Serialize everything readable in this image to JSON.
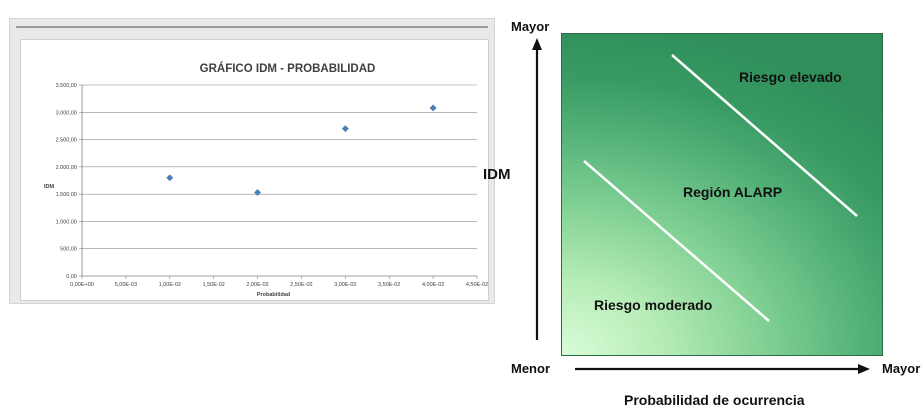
{
  "chart_data": {
    "type": "scatter",
    "title": "GRÁFICO IDM - PROBABILIDAD",
    "xlabel": "Probabilidad",
    "ylabel": "IDM",
    "xlim": [
      0,
      0.045
    ],
    "ylim": [
      0,
      3500
    ],
    "x_ticks": [
      0,
      0.005,
      0.01,
      0.015,
      0.02,
      0.025,
      0.03,
      0.035,
      0.04,
      0.045
    ],
    "x_tick_labels": [
      "0,00E+00",
      "5,00E-03",
      "1,00E-02",
      "1,50E-02",
      "2,00E-02",
      "2,50E-02",
      "3,00E-02",
      "3,50E-02",
      "4,00E-02",
      "4,50E-02"
    ],
    "y_ticks": [
      0,
      500,
      1000,
      1500,
      2000,
      2500,
      3000,
      3500
    ],
    "y_tick_labels": [
      "0,00",
      "500,00",
      "1.000,00",
      "1.500,00",
      "2.000,00",
      "2.500,00",
      "3.000,00",
      "3.500,00"
    ],
    "grid": true,
    "marker": "diamond",
    "marker_color": "#4a7ebb",
    "series": [
      {
        "x": [
          0.01,
          0.02,
          0.03,
          0.04
        ],
        "y": [
          1800,
          1530,
          2700,
          3080
        ]
      }
    ]
  },
  "risk_diagram": {
    "region_labels": {
      "high": "Riesgo elevado",
      "alarp": "Región ALARP",
      "low": "Riesgo moderado"
    },
    "y_axis": {
      "name": "IDM",
      "high": "Mayor",
      "low": "Menor"
    },
    "x_axis": {
      "name": "Probabilidad de ocurrencia",
      "high": "Mayor"
    },
    "colors": {
      "light": "#d9fdd8",
      "dark": "#2f8e5a",
      "line": "#ffffff"
    }
  }
}
